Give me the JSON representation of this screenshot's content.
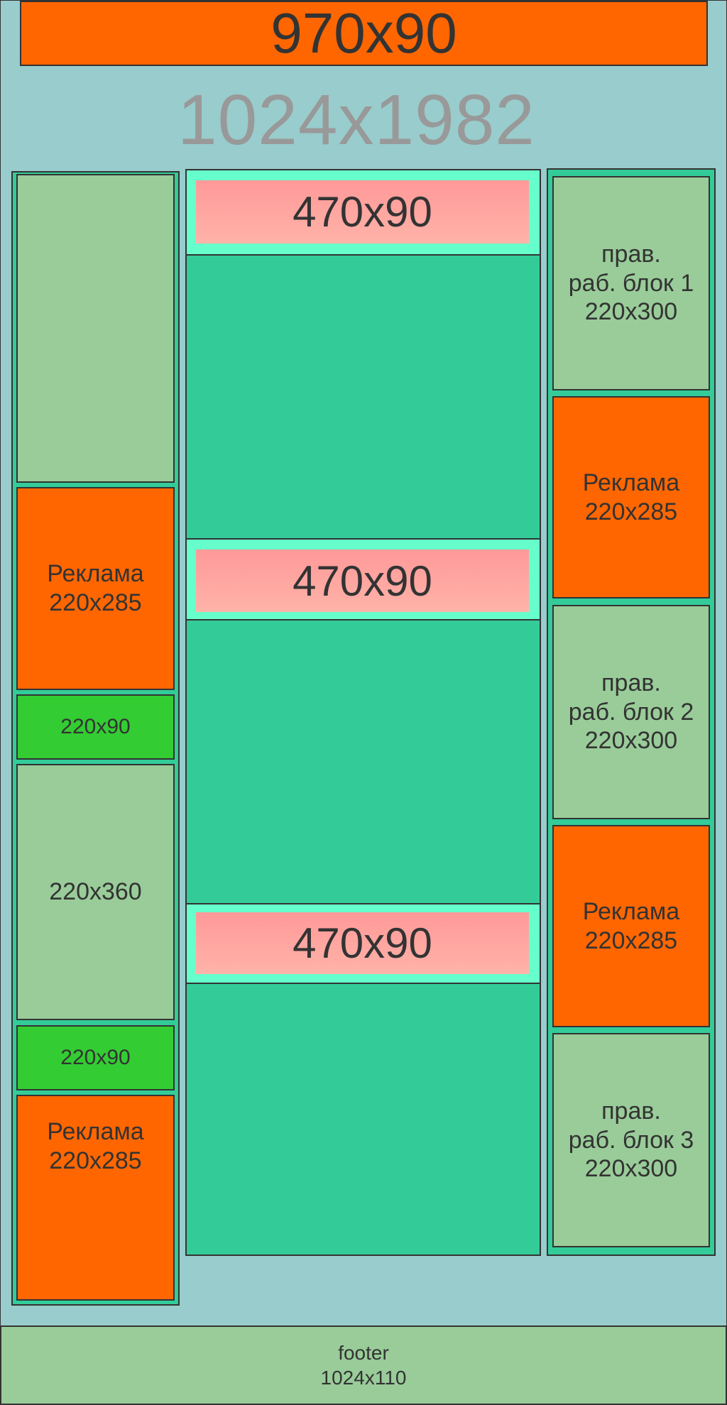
{
  "header_banner": {
    "label": "970x90"
  },
  "page_size_label": "1024x1982",
  "left_column": {
    "blocks": [
      {
        "label": ""
      },
      {
        "label": "Реклама\n220x285"
      },
      {
        "label": "220x90"
      },
      {
        "label": "220x360"
      },
      {
        "label": "220x90"
      },
      {
        "label": "Реклама\n220x285"
      }
    ]
  },
  "center_column": {
    "banners": [
      {
        "label": "470x90"
      },
      {
        "label": "470x90"
      },
      {
        "label": "470x90"
      }
    ]
  },
  "right_column": {
    "blocks": [
      {
        "label": "прав.\nраб. блок 1\n220x300"
      },
      {
        "label": "Реклама\n220x285"
      },
      {
        "label": "прав.\nраб. блок 2\n220x300"
      },
      {
        "label": "Реклама\n220x285"
      },
      {
        "label": "прав.\nраб. блок 3\n220x300"
      }
    ]
  },
  "footer": {
    "label": "footer\n1024x110"
  },
  "colors": {
    "background": "#99cccc",
    "ad_orange": "#ff6600",
    "content_green": "#99cc99",
    "small_green": "#33cc33",
    "center_teal": "#33cc99",
    "banner_frame_mint": "#66ffcc",
    "banner_pink": "#ff9999"
  }
}
